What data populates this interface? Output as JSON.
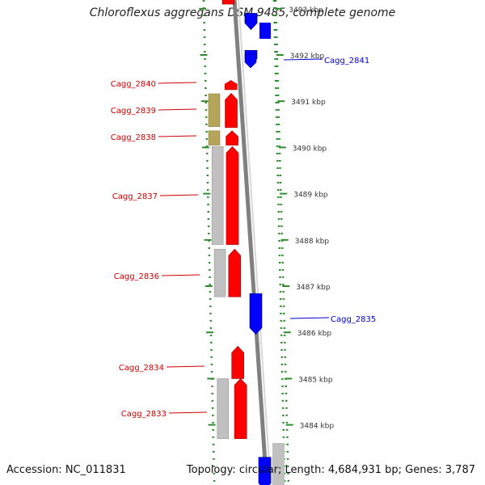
{
  "title": "Chloroflexus aggregans DSM 9485, complete genome",
  "footer": {
    "accession": "Accession: NC_011831",
    "summary": "Topology: circular; Length: 4,684,931 bp; Genes: 3,787"
  },
  "colors": {
    "forward_gene": "#ff0000",
    "reverse_gene": "#0000ff",
    "forward_label": "#cc0000",
    "reverse_label": "#0000cc",
    "tick_dotted": "#2e8b2e",
    "backbone": "#808080",
    "feature_gray": "#c0c0c0",
    "feature_olive": "#b5a55a"
  },
  "scale": {
    "ticks_kbp": [
      3493,
      3492,
      3491,
      3490,
      3489,
      3488,
      3487,
      3486,
      3485,
      3484
    ],
    "tick_labels": [
      "3493 kbp",
      "3492 kbp",
      "3491 kbp",
      "3490 kbp",
      "3489 kbp",
      "3488 kbp",
      "3487 kbp",
      "3486 kbp",
      "3485 kbp",
      "3484 kbp"
    ]
  },
  "genes": [
    {
      "name": "Cagg_2841",
      "strand": "reverse",
      "start_kbp": 3491.8,
      "end_kbp": 3492.1,
      "labeled": true
    },
    {
      "name": "Cagg_2840",
      "strand": "forward",
      "start_kbp": 3491.25,
      "end_kbp": 3491.45,
      "labeled": true
    },
    {
      "name": "Cagg_2839",
      "strand": "forward",
      "start_kbp": 3490.43,
      "end_kbp": 3491.17,
      "labeled": true
    },
    {
      "name": "Cagg_2838",
      "strand": "forward",
      "start_kbp": 3490.05,
      "end_kbp": 3490.36,
      "labeled": true
    },
    {
      "name": "Cagg_2837",
      "strand": "forward",
      "start_kbp": 3487.9,
      "end_kbp": 3490.02,
      "labeled": true
    },
    {
      "name": "Cagg_2836",
      "strand": "forward",
      "start_kbp": 3486.77,
      "end_kbp": 3487.8,
      "labeled": true
    },
    {
      "name": "Cagg_2835",
      "strand": "reverse",
      "start_kbp": 3485.96,
      "end_kbp": 3486.84,
      "labeled": true
    },
    {
      "name": "Cagg_2834",
      "strand": "forward",
      "start_kbp": 3485.0,
      "end_kbp": 3485.7,
      "labeled": true
    },
    {
      "name": "Cagg_2833",
      "strand": "forward",
      "start_kbp": 3483.7,
      "end_kbp": 3485.0,
      "labeled": true
    },
    {
      "name": "",
      "strand": "forward",
      "start_kbp": 3493.1,
      "end_kbp": 3494.0,
      "labeled": false
    },
    {
      "name": "",
      "strand": "reverse",
      "start_kbp": 3492.55,
      "end_kbp": 3492.9,
      "labeled": false
    },
    {
      "name": "",
      "strand": "reverse",
      "start_kbp": 3492.55,
      "end_kbp": 3492.9,
      "labeled": false
    },
    {
      "name": "",
      "strand": "reverse",
      "start_kbp": 3482.6,
      "end_kbp": 3483.3,
      "labeled": false
    }
  ],
  "features": [
    {
      "kind": "olive",
      "start_kbp": 3490.45,
      "end_kbp": 3491.16
    },
    {
      "kind": "olive",
      "start_kbp": 3490.05,
      "end_kbp": 3490.36
    },
    {
      "kind": "gray",
      "start_kbp": 3487.9,
      "end_kbp": 3490.02
    },
    {
      "kind": "gray",
      "start_kbp": 3486.77,
      "end_kbp": 3487.8
    },
    {
      "kind": "gray",
      "start_kbp": 3483.7,
      "end_kbp": 3485.0
    },
    {
      "kind": "gray",
      "start_kbp": 3482.6,
      "end_kbp": 3483.3
    }
  ]
}
